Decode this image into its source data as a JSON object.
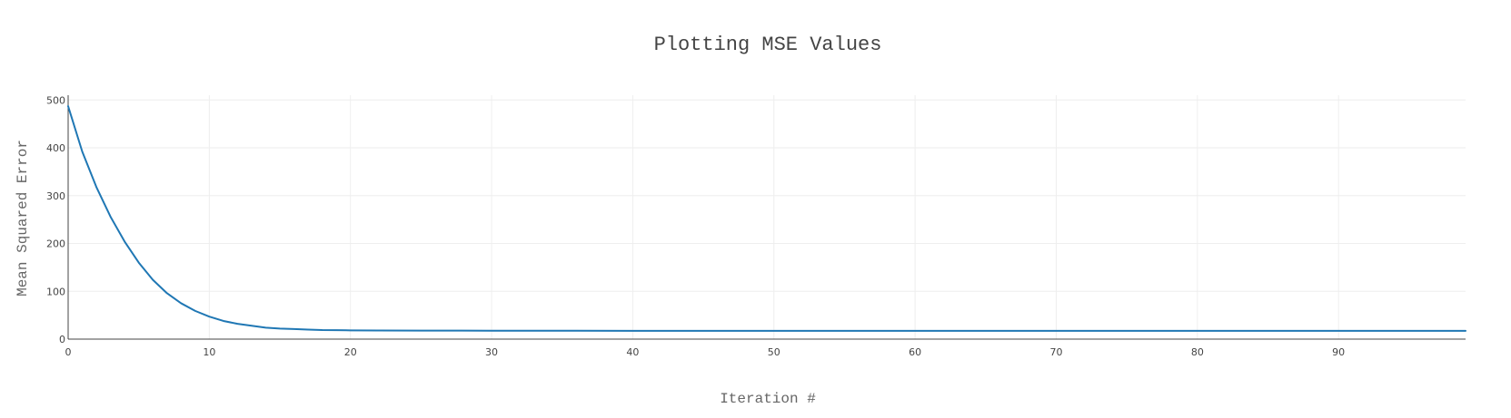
{
  "chart_data": {
    "type": "line",
    "title": "Plotting MSE Values",
    "xlabel": "Iteration #",
    "ylabel": "Mean Squared Error",
    "xlim": [
      0,
      99
    ],
    "ylim": [
      0,
      510
    ],
    "x_ticks": [
      0,
      10,
      20,
      30,
      40,
      50,
      60,
      70,
      80,
      90
    ],
    "y_ticks": [
      0,
      100,
      200,
      300,
      400,
      500
    ],
    "grid": true,
    "legend": "none",
    "series_color": "#1f77b4",
    "series": [
      {
        "x": [
          0,
          1,
          2,
          3,
          4,
          5,
          6,
          7,
          8,
          9,
          10,
          11,
          12,
          13,
          14,
          15,
          16,
          17,
          18,
          19,
          20,
          22,
          25,
          30,
          35,
          40,
          45,
          50,
          55,
          60,
          65,
          70,
          75,
          80,
          85,
          90,
          95,
          99
        ],
        "values": [
          487,
          392,
          318,
          256,
          204,
          160,
          124,
          96,
          75,
          59,
          47,
          38,
          32,
          28,
          24,
          22,
          21,
          20,
          19,
          18.7,
          18.3,
          18,
          17.8,
          17.6,
          17.5,
          17.4,
          17.3,
          17.3,
          17.3,
          17.3,
          17.3,
          17.3,
          17.3,
          17.3,
          17.3,
          17.3,
          17.3,
          17.3
        ]
      }
    ]
  }
}
